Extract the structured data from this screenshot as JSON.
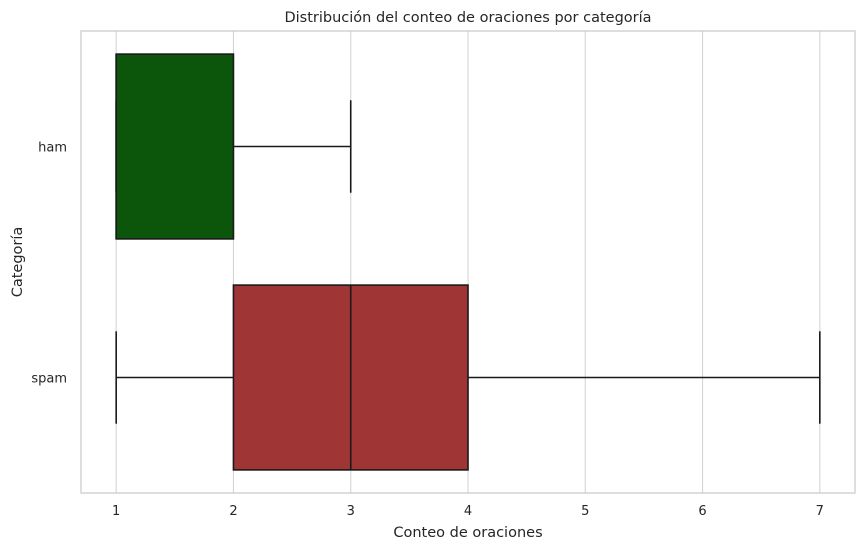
{
  "chart_data": {
    "type": "boxplot",
    "orientation": "horizontal",
    "title": "Distribución del conteo de oraciones por categoría",
    "xlabel": "Conteo de oraciones",
    "ylabel": "Categoría",
    "xlim": [
      0.7,
      7.3
    ],
    "xticks": [
      1,
      2,
      3,
      4,
      5,
      6,
      7
    ],
    "grid": "vertical",
    "categories": [
      "ham",
      "spam"
    ],
    "boxes": [
      {
        "category": "ham",
        "whisker_low": 1,
        "q1": 1,
        "median": 1,
        "q3": 2,
        "whisker_high": 3,
        "color": "#0c560c"
      },
      {
        "category": "spam",
        "whisker_low": 1,
        "q1": 2,
        "median": 3,
        "q3": 4,
        "whisker_high": 7,
        "color": "#a03535"
      }
    ],
    "line_color": "#1a1a1a",
    "grid_color": "#d4d4d4",
    "spine_color": "#c8c8c8"
  }
}
